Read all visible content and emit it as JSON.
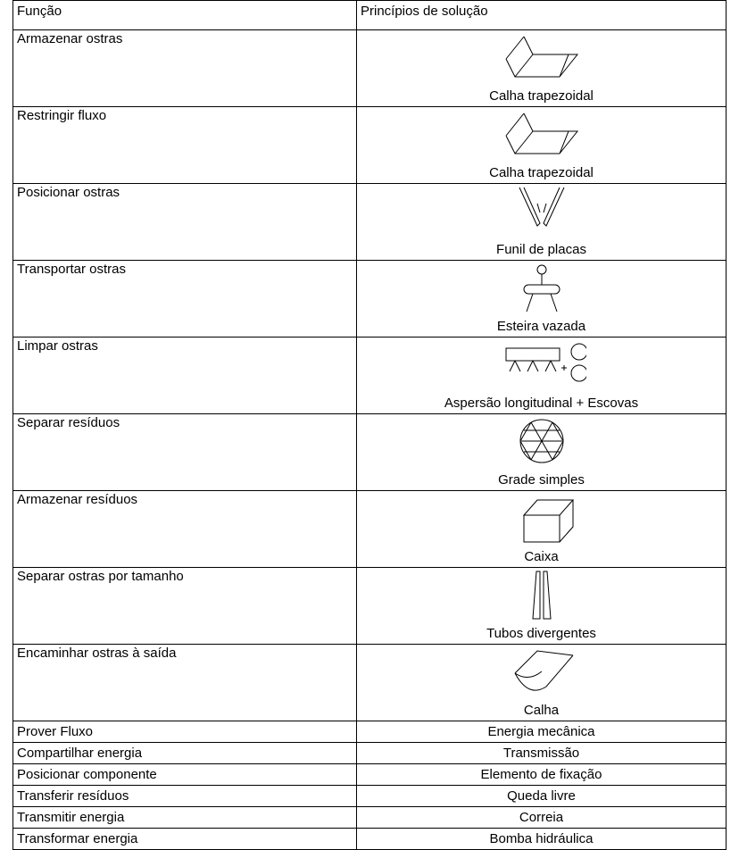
{
  "table": {
    "header": [
      "Função",
      "Princípios de solução"
    ],
    "rows": [
      [
        "Armazenar ostras",
        "Calha trapezoidal"
      ],
      [
        "Restringir fluxo",
        "Calha trapezoidal"
      ],
      [
        "Posicionar ostras",
        "Funil de placas"
      ],
      [
        "Transportar ostras",
        "Esteira vazada"
      ],
      [
        "Limpar ostras",
        "Aspersão longitudinal + Escovas"
      ],
      [
        "Separar resíduos",
        "Grade simples"
      ],
      [
        "Armazenar resíduos",
        "Caixa"
      ],
      [
        "Separar ostras por tamanho",
        "Tubos divergentes"
      ],
      [
        "Encaminhar ostras à saída",
        "Calha"
      ],
      [
        "Prover Fluxo",
        "Energia mecânica"
      ],
      [
        "Compartilhar energia",
        "Transmissão"
      ],
      [
        "Posicionar componente",
        "Elemento de fixação"
      ],
      [
        "Transferir resíduos",
        "Queda livre"
      ],
      [
        "Transmitir energia",
        "Correia"
      ],
      [
        "Transformar energia",
        "Bomba hidráulica"
      ]
    ]
  }
}
